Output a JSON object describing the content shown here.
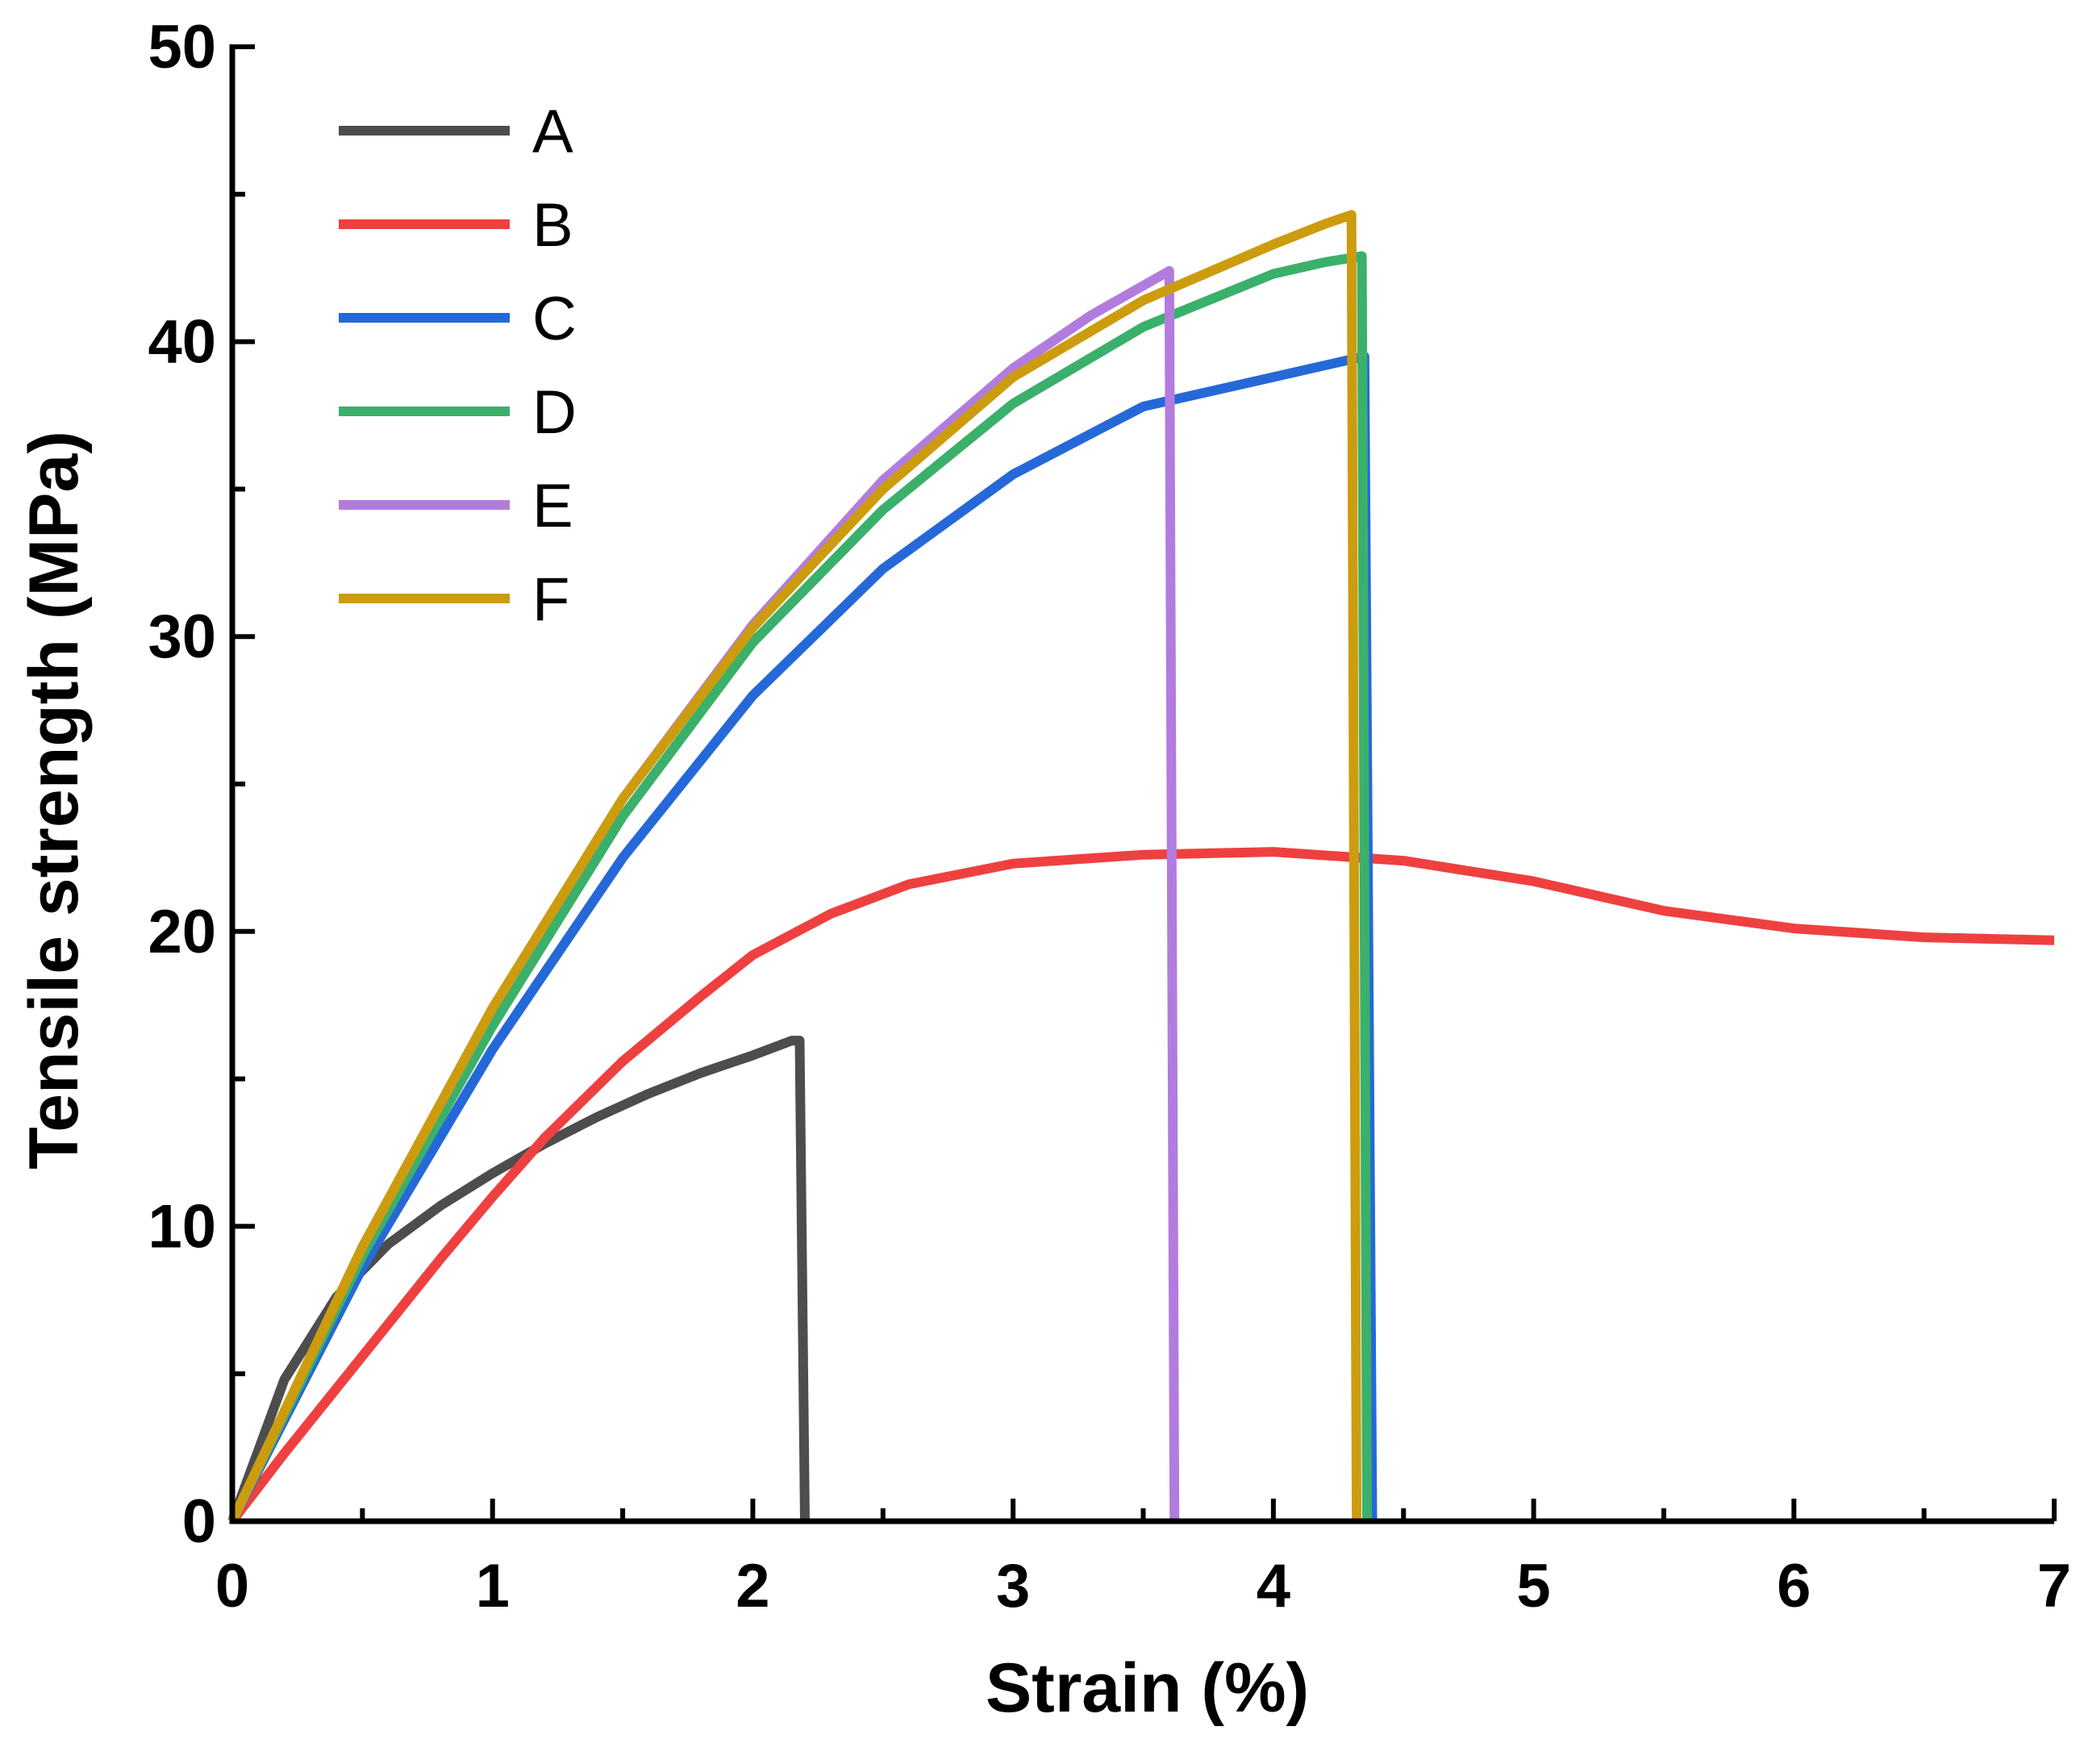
{
  "chart_data": {
    "type": "line",
    "title": "",
    "xlabel": "Strain (%)",
    "ylabel": "Tensile strength (MPa)",
    "xlim": [
      0,
      7
    ],
    "ylim": [
      0,
      50
    ],
    "xticks": [
      0,
      1,
      2,
      3,
      4,
      5,
      6,
      7
    ],
    "xtick_labels": [
      "0",
      "1",
      "2",
      "3",
      "4",
      "5",
      "6",
      "7"
    ],
    "yticks": [
      0,
      10,
      20,
      30,
      40,
      50
    ],
    "ytick_labels": [
      "0",
      "10",
      "20",
      "30",
      "40",
      "50"
    ],
    "grid": false,
    "legend_position": "top-left",
    "series": [
      {
        "name": "A",
        "color": "#4d4d4d",
        "x": [
          0,
          0.2,
          0.4,
          0.6,
          0.8,
          1.0,
          1.2,
          1.4,
          1.6,
          1.8,
          2.0,
          2.15,
          2.18,
          2.2
        ],
        "y": [
          0,
          4.8,
          7.6,
          9.4,
          10.7,
          11.8,
          12.8,
          13.7,
          14.5,
          15.2,
          15.8,
          16.3,
          16.3,
          0
        ]
      },
      {
        "name": "B",
        "color": "#ef4040",
        "x": [
          0,
          0.2,
          0.5,
          0.8,
          1.0,
          1.2,
          1.5,
          1.8,
          2.0,
          2.3,
          2.6,
          3.0,
          3.5,
          4.0,
          4.5,
          5.0,
          5.5,
          6.0,
          6.5,
          7.0
        ],
        "y": [
          0,
          2.3,
          5.6,
          8.9,
          11.0,
          13.0,
          15.6,
          17.8,
          19.2,
          20.6,
          21.6,
          22.3,
          22.6,
          22.7,
          22.4,
          21.7,
          20.7,
          20.1,
          19.8,
          19.7
        ]
      },
      {
        "name": "C",
        "color": "#2569d8",
        "x": [
          0,
          0.5,
          1.0,
          1.5,
          2.0,
          2.5,
          3.0,
          3.5,
          4.0,
          4.2,
          4.35,
          4.38
        ],
        "y": [
          0,
          8.6,
          16.0,
          22.5,
          28.0,
          32.3,
          35.5,
          37.8,
          38.8,
          39.2,
          39.5,
          0
        ]
      },
      {
        "name": "D",
        "color": "#3ab06b",
        "x": [
          0,
          0.5,
          1.0,
          1.5,
          2.0,
          2.5,
          3.0,
          3.5,
          4.0,
          4.2,
          4.34,
          4.36
        ],
        "y": [
          0,
          9.0,
          16.8,
          23.9,
          29.8,
          34.3,
          37.9,
          40.5,
          42.3,
          42.7,
          42.9,
          0
        ]
      },
      {
        "name": "E",
        "color": "#b27cde",
        "x": [
          0,
          0.5,
          1.0,
          1.5,
          2.0,
          2.5,
          3.0,
          3.3,
          3.6,
          3.62
        ],
        "y": [
          0,
          9.3,
          17.4,
          24.5,
          30.4,
          35.3,
          39.1,
          40.9,
          42.4,
          0
        ]
      },
      {
        "name": "F",
        "color": "#cc9c0e",
        "x": [
          0,
          0.5,
          1.0,
          1.5,
          2.0,
          2.5,
          3.0,
          3.5,
          4.0,
          4.2,
          4.3,
          4.32
        ],
        "y": [
          0,
          9.3,
          17.4,
          24.5,
          30.3,
          35.0,
          38.8,
          41.4,
          43.3,
          44.0,
          44.3,
          0
        ]
      }
    ]
  }
}
